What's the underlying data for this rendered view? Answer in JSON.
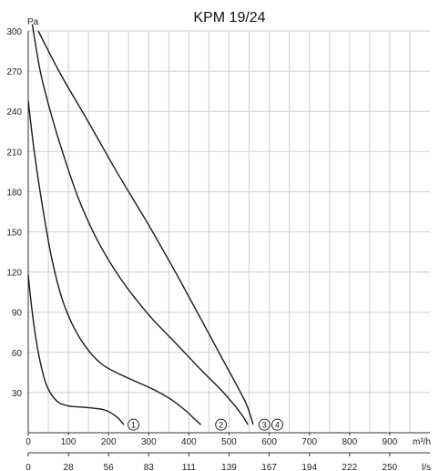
{
  "chart_data": {
    "type": "line",
    "title": "KPM 19/24",
    "ylabel": "Pa",
    "x_units": [
      "m³/h",
      "l/s"
    ],
    "xlim": [
      0,
      1000
    ],
    "ylim": [
      0,
      300
    ],
    "grid": true,
    "y_ticks": [
      30,
      60,
      90,
      120,
      150,
      180,
      210,
      240,
      270,
      300
    ],
    "x_ticks_m3h": [
      0,
      100,
      200,
      300,
      400,
      500,
      600,
      700,
      800,
      900
    ],
    "x_ticks_ls": [
      "0",
      "28",
      "56",
      "83",
      "111",
      "139",
      "167",
      "194",
      "222",
      "250"
    ],
    "series": [
      {
        "name": "1",
        "color": "#1a1a1a",
        "points": [
          [
            0,
            118
          ],
          [
            10,
            90
          ],
          [
            25,
            60
          ],
          [
            45,
            36
          ],
          [
            70,
            24
          ],
          [
            100,
            20
          ],
          [
            140,
            19
          ],
          [
            190,
            17
          ],
          [
            220,
            12
          ],
          [
            238,
            6
          ]
        ]
      },
      {
        "name": "2",
        "color": "#1a1a1a",
        "points": [
          [
            0,
            248
          ],
          [
            15,
            210
          ],
          [
            35,
            170
          ],
          [
            60,
            128
          ],
          [
            90,
            95
          ],
          [
            130,
            70
          ],
          [
            180,
            52
          ],
          [
            240,
            42
          ],
          [
            300,
            34
          ],
          [
            350,
            26
          ],
          [
            390,
            17
          ],
          [
            415,
            10
          ],
          [
            430,
            6
          ]
        ]
      },
      {
        "name": "3",
        "color": "#1a1a1a",
        "points": [
          [
            10,
            305
          ],
          [
            30,
            270
          ],
          [
            55,
            240
          ],
          [
            85,
            210
          ],
          [
            125,
            175
          ],
          [
            170,
            145
          ],
          [
            230,
            115
          ],
          [
            300,
            88
          ],
          [
            370,
            66
          ],
          [
            430,
            47
          ],
          [
            480,
            32
          ],
          [
            515,
            20
          ],
          [
            535,
            12
          ],
          [
            547,
            6
          ]
        ]
      },
      {
        "name": "4",
        "color": "#1a1a1a",
        "points": [
          [
            25,
            300
          ],
          [
            80,
            268
          ],
          [
            150,
            232
          ],
          [
            220,
            195
          ],
          [
            300,
            155
          ],
          [
            370,
            118
          ],
          [
            430,
            85
          ],
          [
            480,
            57
          ],
          [
            520,
            35
          ],
          [
            545,
            20
          ],
          [
            560,
            6
          ]
        ]
      }
    ],
    "curve_markers": [
      {
        "label": "1",
        "x": 262,
        "y": 6
      },
      {
        "label": "2",
        "x": 480,
        "y": 6
      },
      {
        "label": "3",
        "x": 588,
        "y": 6
      },
      {
        "label": "4",
        "x": 620,
        "y": 6
      }
    ]
  }
}
